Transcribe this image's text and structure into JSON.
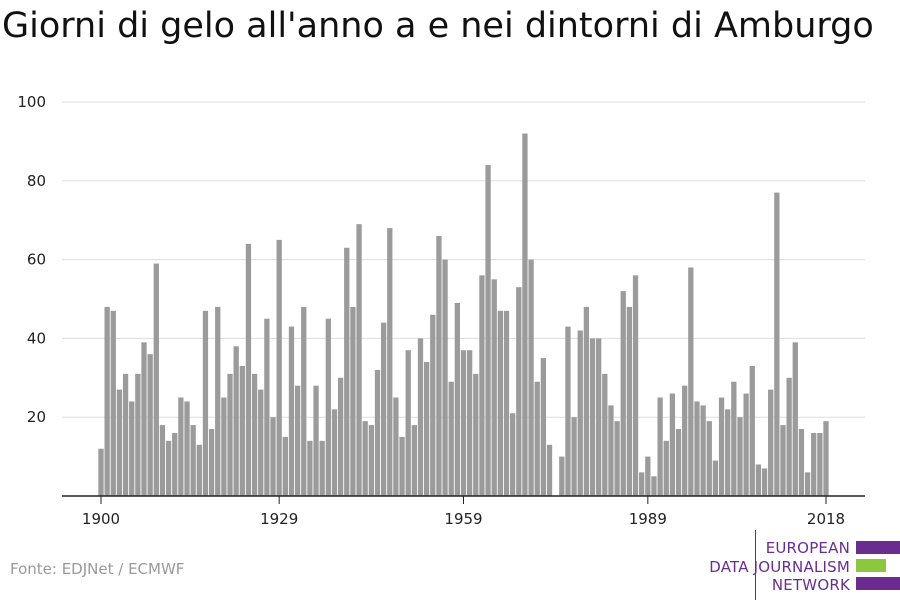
{
  "title": "Giorni di gelo all'anno a e nei dintorni di Amburgo",
  "source": "Fonte: EDJNet / ECMWF",
  "logo": {
    "line1": "EUROPEAN",
    "line2": "DATA JOURNALISM",
    "line3": "NETWORK",
    "colors": {
      "text": "#6b2c8f",
      "bar1": "#6b2c8f",
      "bar2": "#8dc63f",
      "bar3": "#6b2c8f"
    }
  },
  "colors": {
    "bar": "#9b9b9b",
    "grid": "#dddddd",
    "axis": "#222222"
  },
  "chart_data": {
    "type": "bar",
    "title": "Giorni di gelo all'anno a e nei dintorni di Amburgo",
    "xlabel": "",
    "ylabel": "",
    "ylim": [
      0,
      100
    ],
    "yticks": [
      20,
      40,
      60,
      80,
      100
    ],
    "xtick_labels": [
      "1900",
      "1929",
      "1959",
      "1989",
      "2018"
    ],
    "xlim": [
      1900,
      2018
    ],
    "grid": true,
    "legend": "none",
    "categories": [
      1900,
      1901,
      1902,
      1903,
      1904,
      1905,
      1906,
      1907,
      1908,
      1909,
      1910,
      1911,
      1912,
      1913,
      1914,
      1915,
      1916,
      1917,
      1918,
      1919,
      1920,
      1921,
      1922,
      1923,
      1924,
      1925,
      1926,
      1927,
      1928,
      1929,
      1930,
      1931,
      1932,
      1933,
      1934,
      1935,
      1936,
      1937,
      1938,
      1939,
      1940,
      1941,
      1942,
      1943,
      1944,
      1945,
      1946,
      1947,
      1948,
      1949,
      1950,
      1951,
      1952,
      1953,
      1954,
      1955,
      1956,
      1957,
      1958,
      1959,
      1960,
      1961,
      1962,
      1963,
      1964,
      1965,
      1966,
      1967,
      1968,
      1969,
      1970,
      1971,
      1972,
      1973,
      1974,
      1975,
      1976,
      1977,
      1978,
      1979,
      1980,
      1981,
      1982,
      1983,
      1984,
      1985,
      1986,
      1987,
      1988,
      1989,
      1990,
      1991,
      1992,
      1993,
      1994,
      1995,
      1996,
      1997,
      1998,
      1999,
      2000,
      2001,
      2002,
      2003,
      2004,
      2005,
      2006,
      2007,
      2008,
      2009,
      2010,
      2011,
      2012,
      2013,
      2014,
      2015,
      2016,
      2017,
      2018
    ],
    "values": [
      12,
      48,
      47,
      27,
      31,
      24,
      31,
      39,
      36,
      59,
      18,
      14,
      16,
      25,
      24,
      18,
      13,
      47,
      17,
      48,
      25,
      31,
      38,
      33,
      64,
      31,
      27,
      45,
      20,
      65,
      15,
      43,
      28,
      48,
      14,
      28,
      14,
      45,
      22,
      30,
      63,
      48,
      69,
      19,
      18,
      32,
      44,
      68,
      25,
      15,
      37,
      18,
      40,
      34,
      46,
      66,
      60,
      29,
      49,
      37,
      37,
      31,
      56,
      84,
      55,
      47,
      47,
      21,
      53,
      92,
      60,
      29,
      35,
      13,
      0,
      10,
      43,
      20,
      42,
      48,
      40,
      40,
      31,
      23,
      19,
      52,
      48,
      56,
      6,
      10,
      5,
      25,
      14,
      26,
      17,
      28,
      58,
      24,
      23,
      19,
      9,
      25,
      22,
      29,
      20,
      26,
      33,
      8,
      7,
      27,
      77,
      18,
      30,
      39,
      17,
      6,
      16,
      16,
      19
    ]
  }
}
